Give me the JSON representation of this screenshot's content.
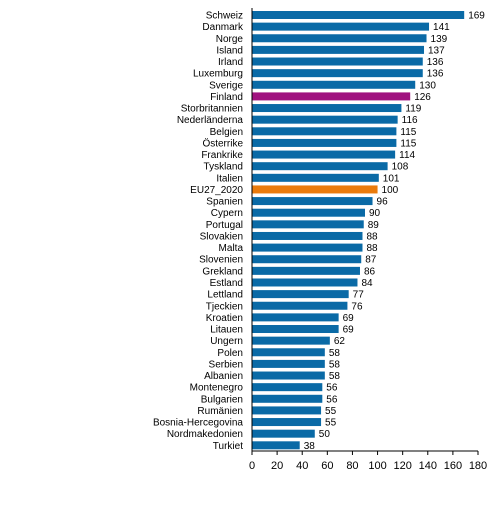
{
  "chart_data": {
    "type": "bar",
    "orientation": "horizontal",
    "categories": [
      "Schweiz",
      "Danmark",
      "Norge",
      "Island",
      "Irland",
      "Luxemburg",
      "Sverige",
      "Finland",
      "Storbritannien",
      "Nederländerna",
      "Belgien",
      "Österrike",
      "Frankrike",
      "Tyskland",
      "Italien",
      "EU27_2020",
      "Spanien",
      "Cypern",
      "Portugal",
      "Slovakien",
      "Malta",
      "Slovenien",
      "Grekland",
      "Estland",
      "Lettland",
      "Tjeckien",
      "Kroatien",
      "Litauen",
      "Ungern",
      "Polen",
      "Serbien",
      "Albanien",
      "Montenegro",
      "Bulgarien",
      "Rumänien",
      "Bosnia-Hercegovina",
      "Nordmakedonien",
      "Turkiet"
    ],
    "values": [
      169,
      141,
      139,
      137,
      136,
      136,
      130,
      126,
      119,
      116,
      115,
      115,
      114,
      108,
      101,
      100,
      96,
      90,
      89,
      88,
      88,
      87,
      86,
      84,
      77,
      76,
      69,
      69,
      62,
      58,
      58,
      58,
      56,
      56,
      55,
      55,
      50,
      38
    ],
    "xlim": [
      0,
      180
    ],
    "xticks": [
      0,
      20,
      40,
      60,
      80,
      100,
      120,
      140,
      160,
      180
    ],
    "grid": false,
    "legend": "none",
    "colors": {
      "default": "#0a6aa6",
      "highlight_finland": "#a0127f",
      "highlight_eu": "#ea7b0c",
      "axis": "#000000",
      "text": "#000000"
    },
    "highlights": {
      "Finland": "highlight_finland",
      "EU27_2020": "highlight_eu"
    }
  }
}
